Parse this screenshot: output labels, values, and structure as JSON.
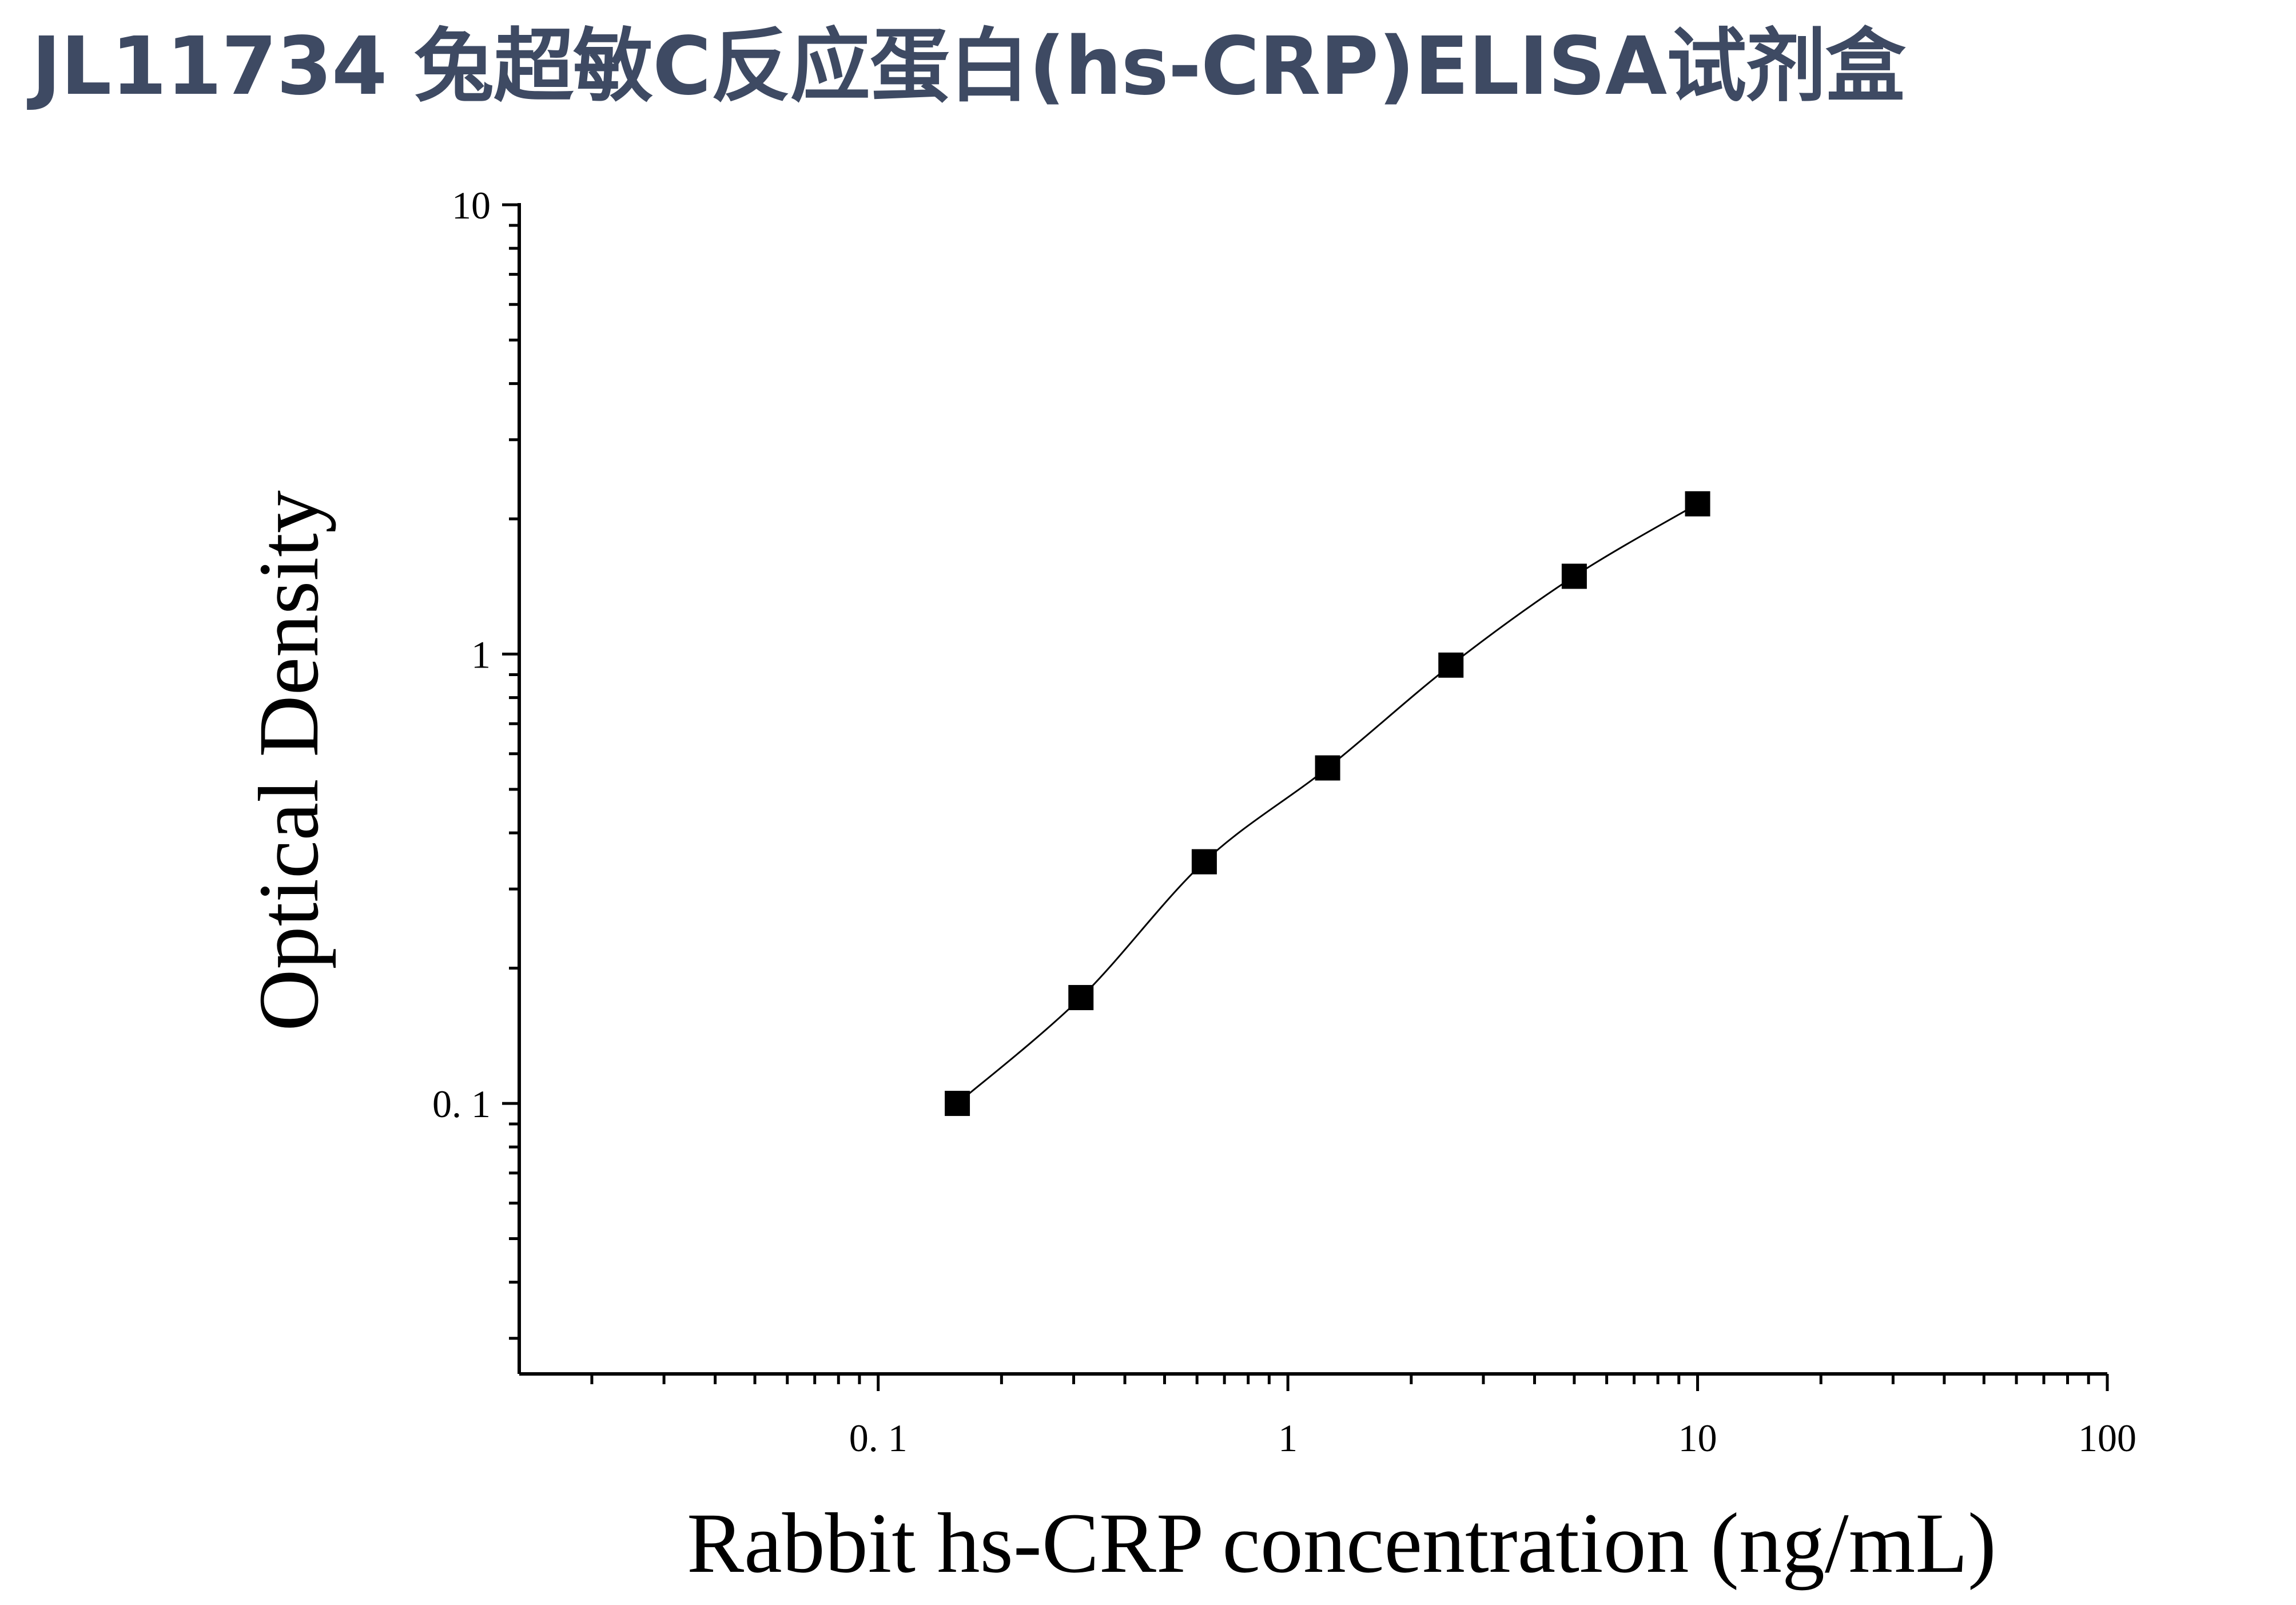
{
  "chart_data": {
    "type": "scatter",
    "title": "JL11734 兔超敏C反应蛋白(hs-CRP)ELISA试剂盒",
    "xlabel": "Rabbit hs-CRP concentration (ng/mL)",
    "ylabel": "Optical Density",
    "x_scale": "log",
    "y_scale": "log",
    "xlim": [
      0.0133,
      100
    ],
    "ylim": [
      0.025,
      10
    ],
    "x_ticks": [
      {
        "value": 0.1,
        "label": "0. 1"
      },
      {
        "value": 1,
        "label": "1"
      },
      {
        "value": 10,
        "label": "10"
      },
      {
        "value": 100,
        "label": "100"
      }
    ],
    "y_ticks": [
      {
        "value": 0.1,
        "label": "0. 1"
      },
      {
        "value": 1,
        "label": "1"
      },
      {
        "value": 10,
        "label": "10"
      }
    ],
    "grid": false,
    "legend": "none",
    "marker": "square",
    "fit_line": true,
    "x": [
      0.156,
      0.3125,
      0.625,
      1.25,
      2.5,
      5,
      10
    ],
    "y": [
      0.1,
      0.172,
      0.345,
      0.558,
      0.945,
      1.49,
      2.16
    ]
  }
}
